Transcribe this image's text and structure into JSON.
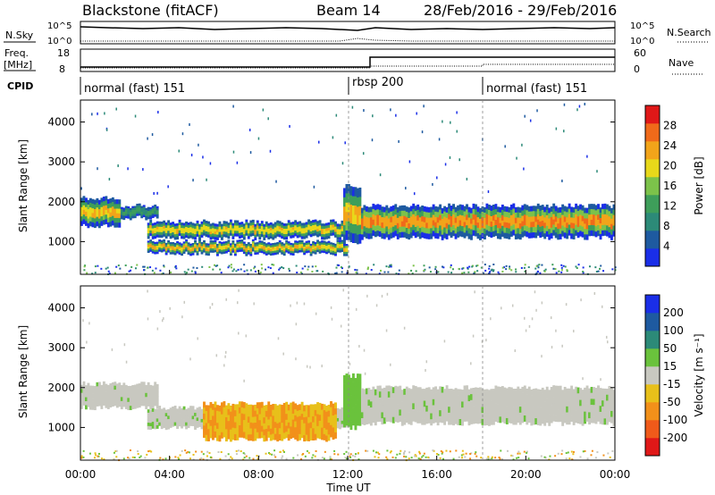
{
  "header": {
    "station": "Blackstone (fitACF)",
    "beam": "Beam 14",
    "dates": "28/Feb/2016 - 29/Feb/2016"
  },
  "status_panels": {
    "nsky_label": "N.Sky",
    "nsearch_label": "N.Search",
    "freq_label": "Freq.",
    "freq_unit": "[MHz]",
    "nave_label": "Nave",
    "cpid_label": "CPID",
    "noise_ticks": [
      "10^5",
      "10^0"
    ],
    "noise_ticks_right": [
      "10^5",
      "10^0"
    ],
    "freq_ticks": [
      "18",
      "8"
    ],
    "nave_ticks": [
      "60",
      "0"
    ],
    "cpid_segments": [
      {
        "label": "normal (fast) 151",
        "start_h": 0
      },
      {
        "label": "rbsp 200",
        "start_h": 12
      },
      {
        "label": "normal (fast) 151",
        "start_h": 18
      }
    ]
  },
  "colors": {
    "power": [
      "#1a2ee8",
      "#1e5aa0",
      "#2c8a78",
      "#3e9e5a",
      "#7cc24a",
      "#e8d81a",
      "#f2a41a",
      "#f06a1a",
      "#e01818"
    ],
    "velocity": [
      "#1a2ee8",
      "#1e5aa0",
      "#2c8a78",
      "#6ac23c",
      "#c8c8c0",
      "#e8c01a",
      "#f2901a",
      "#f05a1a",
      "#e01818"
    ]
  },
  "chart_data": [
    {
      "type": "heatmap",
      "name": "power",
      "ylabel": "Slant Range [km]",
      "xlabel": "Time UT",
      "xlim_h": [
        0,
        24
      ],
      "ylim": [
        180,
        4550
      ],
      "yticks": [
        1000,
        2000,
        3000,
        4000
      ],
      "xticks": [
        "00:00",
        "04:00",
        "08:00",
        "12:00",
        "16:00",
        "20:00",
        "00:00"
      ],
      "colorbar": {
        "label": "Power [dB]",
        "range": [
          0,
          32
        ],
        "ticks": [
          4,
          8,
          12,
          16,
          20,
          24,
          28
        ]
      },
      "bands": [
        {
          "t0": 0.0,
          "t1": 1.8,
          "r0": 1400,
          "r1": 2100,
          "peak_db": 22
        },
        {
          "t0": 1.8,
          "t1": 3.5,
          "r0": 1600,
          "r1": 1900,
          "peak_db": 10
        },
        {
          "t0": 3.0,
          "t1": 12.0,
          "r0": 1100,
          "r1": 1500,
          "peak_db": 20
        },
        {
          "t0": 3.0,
          "t1": 12.0,
          "r0": 700,
          "r1": 1000,
          "peak_db": 22
        },
        {
          "t0": 11.8,
          "t1": 12.6,
          "r0": 1000,
          "r1": 2400,
          "peak_db": 22
        },
        {
          "t0": 12.6,
          "t1": 24.0,
          "r0": 1100,
          "r1": 1900,
          "peak_db": 26
        }
      ]
    },
    {
      "type": "heatmap",
      "name": "velocity",
      "ylabel": "Slant Range [km]",
      "xlabel": "Time UT",
      "xlim_h": [
        0,
        24
      ],
      "ylim": [
        180,
        4550
      ],
      "yticks": [
        1000,
        2000,
        3000,
        4000
      ],
      "xticks": [
        "00:00",
        "04:00",
        "08:00",
        "12:00",
        "16:00",
        "20:00",
        "00:00"
      ],
      "colorbar": {
        "label": "Velocity [m s⁻¹]",
        "ticks": [
          "200",
          "100",
          "50",
          "15",
          "-15",
          "-50",
          "-100",
          "-200"
        ]
      },
      "bands": [
        {
          "t0": 0.0,
          "t1": 3.5,
          "r0": 1500,
          "r1": 2100,
          "class": "grey"
        },
        {
          "t0": 3.0,
          "t1": 12.0,
          "r0": 1000,
          "r1": 1500,
          "class": "grey"
        },
        {
          "t0": 5.5,
          "t1": 11.5,
          "r0": 700,
          "r1": 1600,
          "class": "orange"
        },
        {
          "t0": 11.8,
          "t1": 12.6,
          "r0": 1000,
          "r1": 2300,
          "class": "green"
        },
        {
          "t0": 12.6,
          "t1": 24.0,
          "r0": 1100,
          "r1": 2000,
          "class": "grey"
        }
      ]
    }
  ]
}
